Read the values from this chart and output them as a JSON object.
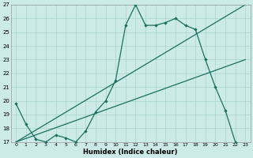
{
  "xlabel": "Humidex (Indice chaleur)",
  "bg_color": "#cceae7",
  "grid_color": "#aad4d0",
  "line_color": "#1a7060",
  "xlim": [
    -0.5,
    23.5
  ],
  "ylim": [
    17,
    27
  ],
  "yticks": [
    17,
    18,
    19,
    20,
    21,
    22,
    23,
    24,
    25,
    26,
    27
  ],
  "xticks": [
    0,
    1,
    2,
    3,
    4,
    5,
    6,
    7,
    8,
    9,
    10,
    11,
    12,
    13,
    14,
    15,
    16,
    17,
    18,
    19,
    20,
    21,
    22,
    23
  ],
  "line1_x": [
    0,
    1,
    2,
    3,
    4,
    5,
    6,
    7,
    8,
    9,
    10,
    11,
    12,
    13,
    14,
    15,
    16,
    17,
    18,
    19,
    20,
    21,
    22
  ],
  "line1_y": [
    19.8,
    18.3,
    17.2,
    17.0,
    17.5,
    17.3,
    17.0,
    17.8,
    19.2,
    20.0,
    21.5,
    25.5,
    27.0,
    25.5,
    25.5,
    25.7,
    26.0,
    25.5,
    25.2,
    23.0,
    21.0,
    19.3,
    17.0
  ],
  "line2_x": [
    0,
    23
  ],
  "line2_y": [
    17.0,
    23.0
  ],
  "line3_x": [
    0,
    23
  ],
  "line3_y": [
    17.0,
    27.0
  ]
}
